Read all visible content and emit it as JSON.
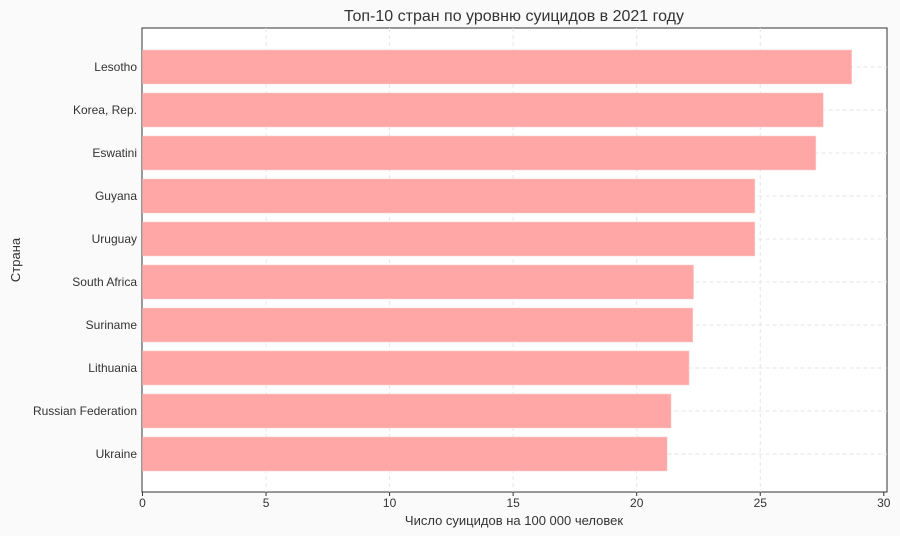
{
  "chart_data": {
    "type": "bar",
    "orientation": "horizontal",
    "title": "Топ-10 стран по уровню суицидов в 2021 году",
    "xlabel": "Число суицидов на 100 000 человек",
    "ylabel": "Страна",
    "categories": [
      "Lesotho",
      "Korea, Rep.",
      "Eswatini",
      "Guyana",
      "Uruguay",
      "South Africa",
      "Suriname",
      "Lithuania",
      "Russian Federation",
      "Ukraine"
    ],
    "values": [
      28.7,
      27.55,
      27.25,
      24.78,
      24.78,
      22.3,
      22.27,
      22.12,
      21.39,
      21.23
    ],
    "xlim": [
      0,
      30
    ],
    "xticks": [
      "0",
      "5",
      "10",
      "15",
      "20",
      "25",
      "30"
    ],
    "grid": true,
    "bar_color": "#ffa6a6"
  }
}
